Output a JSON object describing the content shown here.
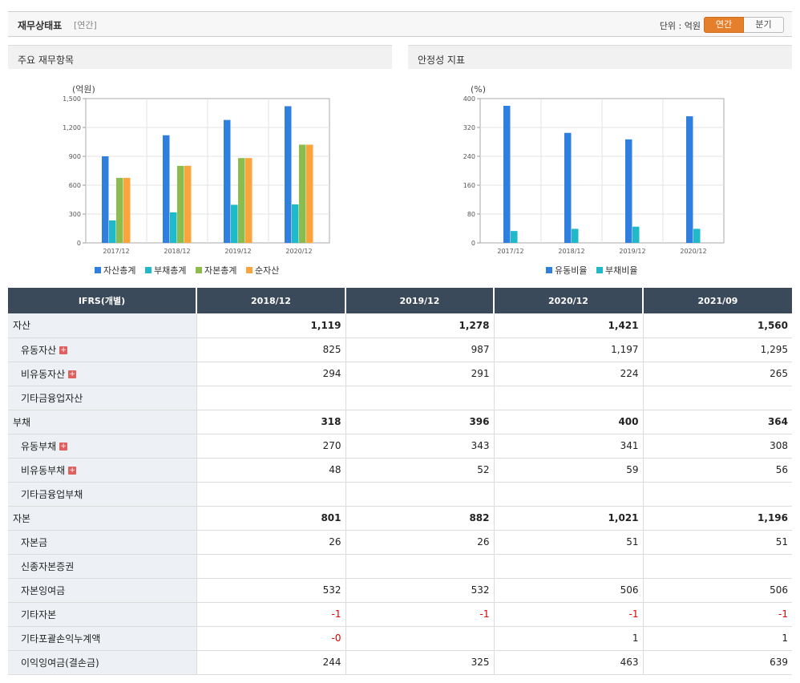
{
  "header": {
    "title": "재무상태표",
    "period": "[연간]",
    "unit_label": "단위 : 억원",
    "toggle_annual": "연간",
    "toggle_quarter": "분기"
  },
  "panel1": {
    "title": "주요 재무항목"
  },
  "panel2": {
    "title": "안정성 지표"
  },
  "chart_data": [
    {
      "type": "bar",
      "title": "주요 재무항목",
      "unit": "(억원)",
      "categories": [
        "2017/12",
        "2018/12",
        "2019/12",
        "2020/12"
      ],
      "ylim": [
        0,
        1500
      ],
      "yticks": [
        "0",
        "300",
        "600",
        "900",
        "1,200",
        "1,500"
      ],
      "ytick_values": [
        0,
        300,
        600,
        900,
        1200,
        1500
      ],
      "legend_position": "bottom",
      "series": [
        {
          "name": "자산총계",
          "color": "#2f7fdf",
          "values": [
            900,
            1119,
            1278,
            1421
          ]
        },
        {
          "name": "부채총계",
          "color": "#1fb9c9",
          "values": [
            234,
            318,
            396,
            400
          ]
        },
        {
          "name": "자본총계",
          "color": "#8cbd4c",
          "values": [
            676,
            801,
            882,
            1021
          ]
        },
        {
          "name": "순자산",
          "color": "#f9a43d",
          "values": [
            676,
            801,
            882,
            1021
          ]
        }
      ]
    },
    {
      "type": "bar",
      "title": "안정성 지표",
      "unit": "(%)",
      "categories": [
        "2017/12",
        "2018/12",
        "2019/12",
        "2020/12"
      ],
      "ylim": [
        0,
        400
      ],
      "yticks": [
        "0",
        "80",
        "160",
        "240",
        "320",
        "400"
      ],
      "ytick_values": [
        0,
        80,
        160,
        240,
        320,
        400
      ],
      "legend_position": "bottom",
      "series": [
        {
          "name": "유동비율",
          "color": "#2f7fdf",
          "values": [
            380,
            305,
            287,
            351
          ]
        },
        {
          "name": "부채비율",
          "color": "#1fb9c9",
          "values": [
            33,
            39,
            45,
            39
          ]
        }
      ]
    }
  ],
  "table": {
    "corner": "IFRS(개별)",
    "columns": [
      "2018/12",
      "2019/12",
      "2020/12",
      "2021/09"
    ],
    "rows": [
      {
        "label": "자산",
        "major": true,
        "plus": false,
        "values": [
          "1,119",
          "1,278",
          "1,421",
          "1,560"
        ]
      },
      {
        "label": "유동자산",
        "major": false,
        "plus": true,
        "values": [
          "825",
          "987",
          "1,197",
          "1,295"
        ]
      },
      {
        "label": "비유동자산",
        "major": false,
        "plus": true,
        "values": [
          "294",
          "291",
          "224",
          "265"
        ]
      },
      {
        "label": "기타금융업자산",
        "major": false,
        "plus": false,
        "values": [
          "",
          "",
          "",
          ""
        ]
      },
      {
        "label": "부채",
        "major": true,
        "plus": false,
        "values": [
          "318",
          "396",
          "400",
          "364"
        ]
      },
      {
        "label": "유동부채",
        "major": false,
        "plus": true,
        "values": [
          "270",
          "343",
          "341",
          "308"
        ]
      },
      {
        "label": "비유동부채",
        "major": false,
        "plus": true,
        "values": [
          "48",
          "52",
          "59",
          "56"
        ]
      },
      {
        "label": "기타금융업부채",
        "major": false,
        "plus": false,
        "values": [
          "",
          "",
          "",
          ""
        ]
      },
      {
        "label": "자본",
        "major": true,
        "plus": false,
        "values": [
          "801",
          "882",
          "1,021",
          "1,196"
        ]
      },
      {
        "label": "자본금",
        "major": false,
        "plus": false,
        "values": [
          "26",
          "26",
          "51",
          "51"
        ]
      },
      {
        "label": "신종자본증권",
        "major": false,
        "plus": false,
        "values": [
          "",
          "",
          "",
          ""
        ]
      },
      {
        "label": "자본잉여금",
        "major": false,
        "plus": false,
        "values": [
          "532",
          "532",
          "506",
          "506"
        ]
      },
      {
        "label": "기타자본",
        "major": false,
        "plus": false,
        "values": [
          "-1",
          "-1",
          "-1",
          "-1"
        ]
      },
      {
        "label": "기타포괄손익누계액",
        "major": false,
        "plus": false,
        "values": [
          "-0",
          "",
          "1",
          "1"
        ]
      },
      {
        "label": "이익잉여금(결손금)",
        "major": false,
        "plus": false,
        "values": [
          "244",
          "325",
          "463",
          "639"
        ]
      }
    ]
  }
}
